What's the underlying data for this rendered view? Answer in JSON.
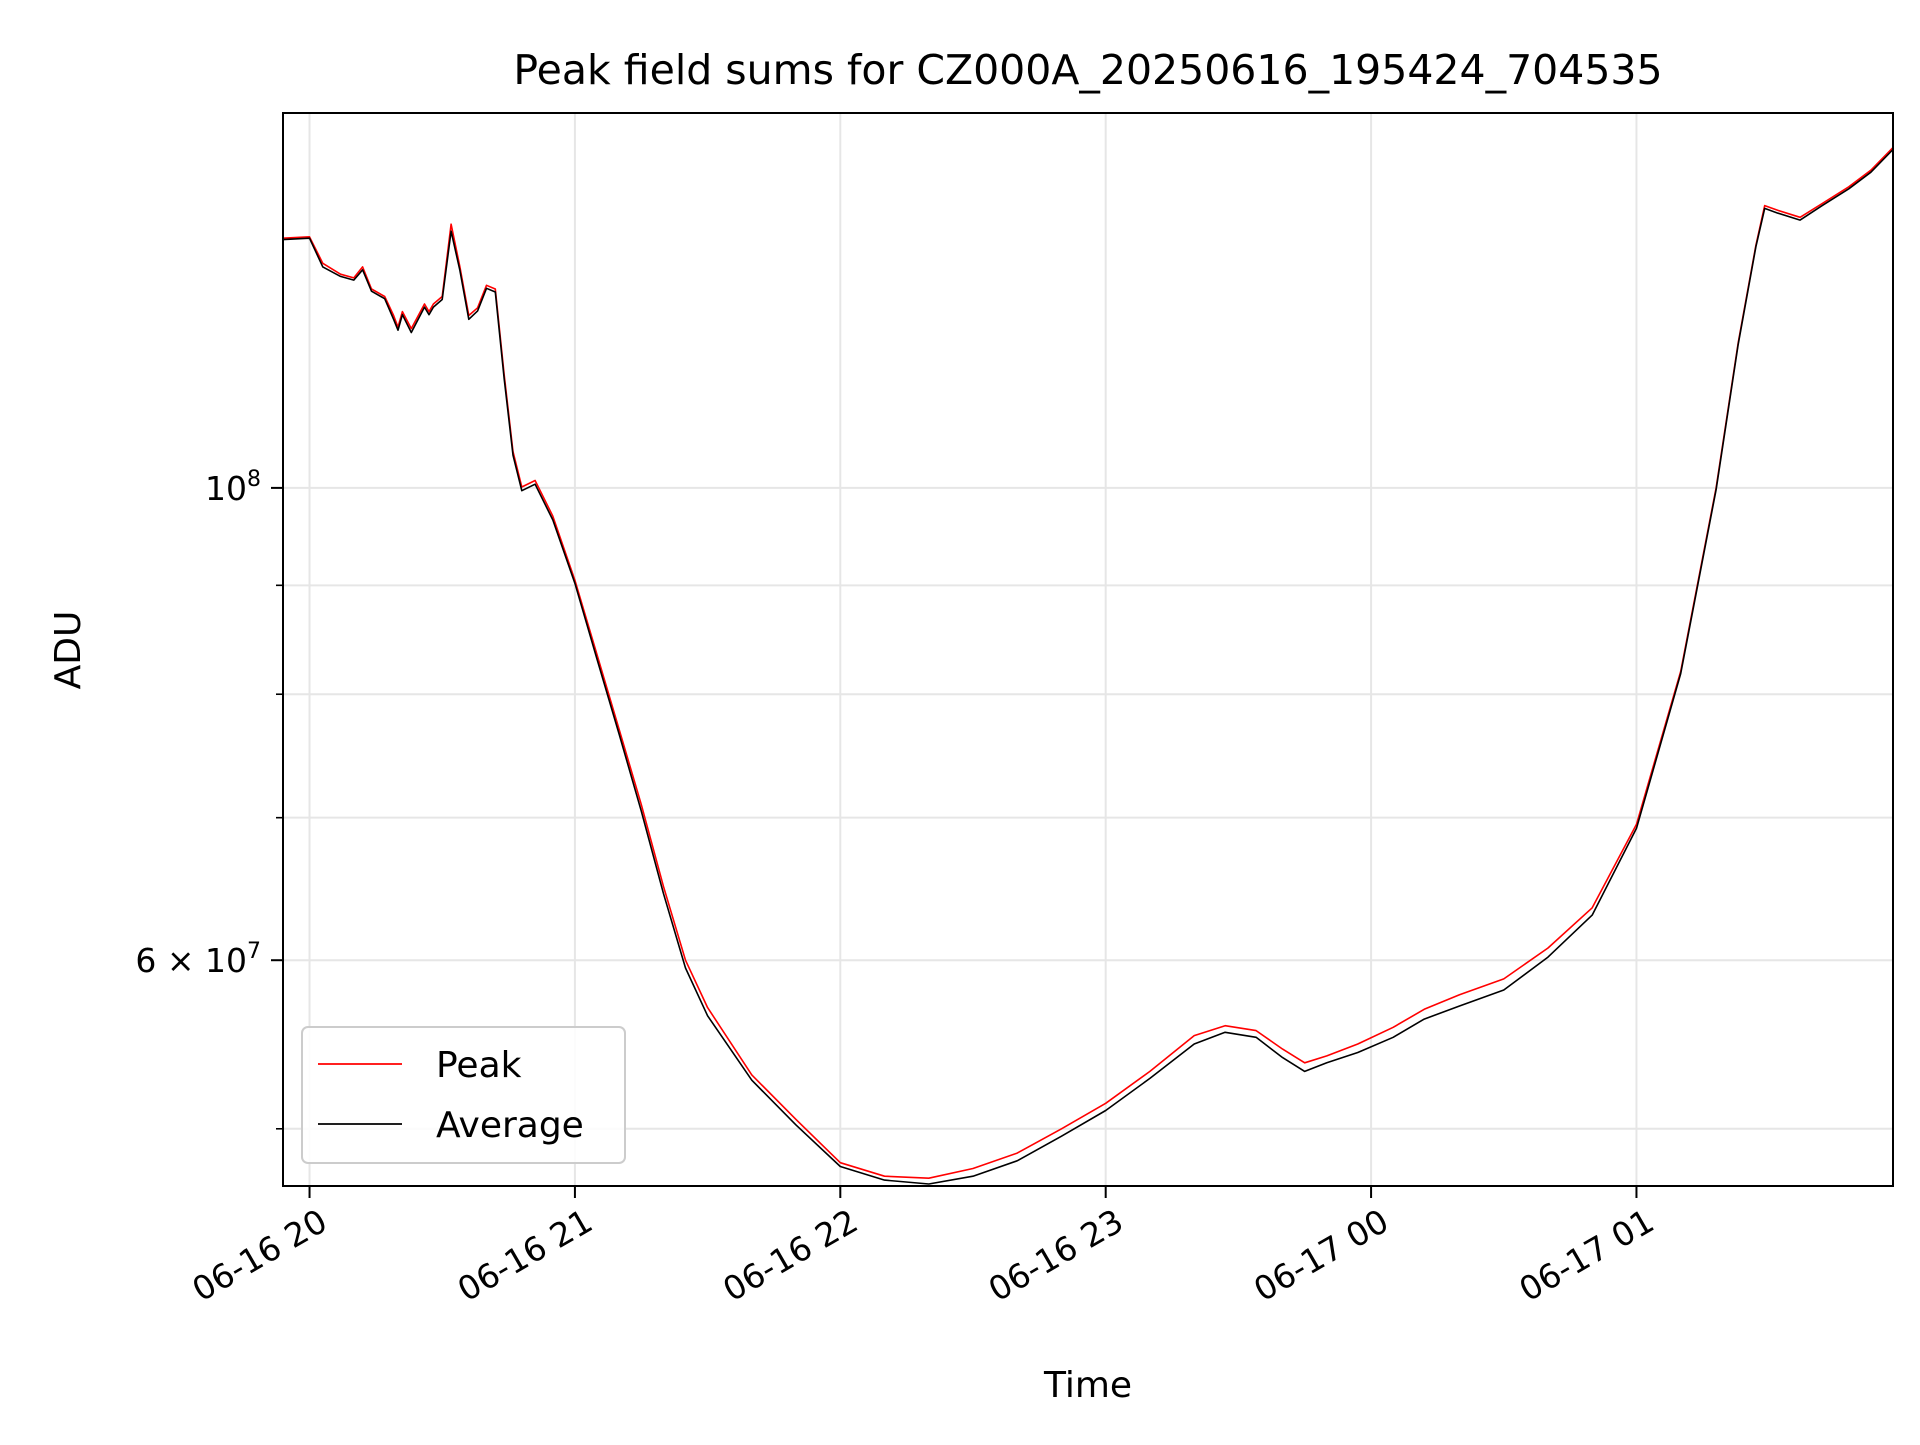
{
  "chart_data": {
    "type": "line",
    "title": "Peak field sums for CZ000A_20250616_195424_704535",
    "xlabel": "Time",
    "ylabel": "ADU",
    "y_scale": "log",
    "grid": true,
    "legend_placement": "lower-left",
    "xlim": [
      "2025-06-16 19:54",
      "2025-06-17 01:58"
    ],
    "ylim": [
      47000000,
      150000000
    ],
    "x_ticks": [
      {
        "t": "2025-06-16 20:00",
        "label": "06-16 20"
      },
      {
        "t": "2025-06-16 21:00",
        "label": "06-16 21"
      },
      {
        "t": "2025-06-16 22:00",
        "label": "06-16 22"
      },
      {
        "t": "2025-06-16 23:00",
        "label": "06-16 23"
      },
      {
        "t": "2025-06-17 00:00",
        "label": "06-17 00"
      },
      {
        "t": "2025-06-17 01:00",
        "label": "06-17 01"
      }
    ],
    "y_major_ticks": [
      {
        "value": 100000000,
        "label_base": "10",
        "label_exp": "8",
        "label_mult": ""
      },
      {
        "value": 60000000,
        "label_base": "10",
        "label_exp": "7",
        "label_mult": "6 × "
      }
    ],
    "y_minor_ticks": [
      50000000,
      70000000,
      80000000,
      90000000
    ],
    "series": [
      {
        "name": "Peak",
        "color": "#ff0000",
        "x": [
          "2025-06-16 19:54",
          "2025-06-16 20:00",
          "2025-06-16 20:03",
          "2025-06-16 20:07",
          "2025-06-16 20:10",
          "2025-06-16 20:12",
          "2025-06-16 20:14",
          "2025-06-16 20:17",
          "2025-06-16 20:19",
          "2025-06-16 20:20",
          "2025-06-16 20:21",
          "2025-06-16 20:23",
          "2025-06-16 20:26",
          "2025-06-16 20:27",
          "2025-06-16 20:28",
          "2025-06-16 20:30",
          "2025-06-16 20:32",
          "2025-06-16 20:34",
          "2025-06-16 20:36",
          "2025-06-16 20:38",
          "2025-06-16 20:40",
          "2025-06-16 20:42",
          "2025-06-16 20:44",
          "2025-06-16 20:46",
          "2025-06-16 20:48",
          "2025-06-16 20:51",
          "2025-06-16 20:55",
          "2025-06-16 21:00",
          "2025-06-16 21:05",
          "2025-06-16 21:10",
          "2025-06-16 21:15",
          "2025-06-16 21:20",
          "2025-06-16 21:25",
          "2025-06-16 21:30",
          "2025-06-16 21:40",
          "2025-06-16 21:50",
          "2025-06-16 22:00",
          "2025-06-16 22:10",
          "2025-06-16 22:20",
          "2025-06-16 22:30",
          "2025-06-16 22:40",
          "2025-06-16 22:50",
          "2025-06-16 23:00",
          "2025-06-16 23:10",
          "2025-06-16 23:20",
          "2025-06-16 23:27",
          "2025-06-16 23:34",
          "2025-06-16 23:40",
          "2025-06-16 23:45",
          "2025-06-16 23:50",
          "2025-06-16 23:57",
          "2025-06-17 00:05",
          "2025-06-17 00:12",
          "2025-06-17 00:20",
          "2025-06-17 00:30",
          "2025-06-17 00:40",
          "2025-06-17 00:50",
          "2025-06-17 01:00",
          "2025-06-17 01:10",
          "2025-06-17 01:18",
          "2025-06-17 01:23",
          "2025-06-17 01:27",
          "2025-06-17 01:29",
          "2025-06-17 01:32",
          "2025-06-17 01:37",
          "2025-06-17 01:42",
          "2025-06-17 01:48",
          "2025-06-17 01:53",
          "2025-06-17 01:58"
        ],
        "y": [
          131000000,
          131200000,
          127500000,
          126000000,
          125500000,
          127000000,
          124000000,
          123000000,
          120500000,
          119000000,
          121000000,
          118800000,
          122000000,
          121000000,
          122000000,
          123000000,
          133000000,
          127000000,
          120500000,
          121500000,
          124500000,
          124000000,
          113000000,
          104000000,
          100100000,
          100800000,
          97000000,
          90500000,
          83500000,
          77000000,
          71000000,
          65000000,
          60000000,
          57000000,
          53000000,
          50500000,
          48200000,
          47500000,
          47400000,
          47900000,
          48700000,
          50000000,
          51400000,
          53200000,
          55300000,
          55900000,
          55600000,
          54500000,
          53700000,
          54100000,
          54800000,
          55800000,
          56900000,
          57800000,
          58800000,
          60800000,
          63500000,
          69500000,
          82000000,
          100000000,
          117000000,
          130000000,
          135700000,
          135000000,
          134000000,
          136000000,
          138500000,
          141000000,
          144500000
        ]
      },
      {
        "name": "Average",
        "color": "#000000",
        "x": [
          "2025-06-16 19:54",
          "2025-06-16 20:00",
          "2025-06-16 20:03",
          "2025-06-16 20:07",
          "2025-06-16 20:10",
          "2025-06-16 20:12",
          "2025-06-16 20:14",
          "2025-06-16 20:17",
          "2025-06-16 20:19",
          "2025-06-16 20:20",
          "2025-06-16 20:21",
          "2025-06-16 20:23",
          "2025-06-16 20:26",
          "2025-06-16 20:27",
          "2025-06-16 20:28",
          "2025-06-16 20:30",
          "2025-06-16 20:32",
          "2025-06-16 20:34",
          "2025-06-16 20:36",
          "2025-06-16 20:38",
          "2025-06-16 20:40",
          "2025-06-16 20:42",
          "2025-06-16 20:44",
          "2025-06-16 20:46",
          "2025-06-16 20:48",
          "2025-06-16 20:51",
          "2025-06-16 20:55",
          "2025-06-16 21:00",
          "2025-06-16 21:05",
          "2025-06-16 21:10",
          "2025-06-16 21:15",
          "2025-06-16 21:20",
          "2025-06-16 21:25",
          "2025-06-16 21:30",
          "2025-06-16 21:40",
          "2025-06-16 21:50",
          "2025-06-16 22:00",
          "2025-06-16 22:10",
          "2025-06-16 22:20",
          "2025-06-16 22:30",
          "2025-06-16 22:40",
          "2025-06-16 22:50",
          "2025-06-16 23:00",
          "2025-06-16 23:10",
          "2025-06-16 23:20",
          "2025-06-16 23:27",
          "2025-06-16 23:34",
          "2025-06-16 23:40",
          "2025-06-16 23:45",
          "2025-06-16 23:50",
          "2025-06-16 23:57",
          "2025-06-17 00:05",
          "2025-06-17 00:12",
          "2025-06-17 00:20",
          "2025-06-17 00:30",
          "2025-06-17 00:40",
          "2025-06-17 00:50",
          "2025-06-17 01:00",
          "2025-06-17 01:10",
          "2025-06-17 01:18",
          "2025-06-17 01:23",
          "2025-06-17 01:27",
          "2025-06-17 01:29",
          "2025-06-17 01:32",
          "2025-06-17 01:37",
          "2025-06-17 01:42",
          "2025-06-17 01:48",
          "2025-06-17 01:53",
          "2025-06-17 01:58"
        ],
        "y": [
          130800000,
          131000000,
          127000000,
          125700000,
          125200000,
          126600000,
          123700000,
          122700000,
          120000000,
          118600000,
          120600000,
          118300000,
          121600000,
          120600000,
          121600000,
          122600000,
          132000000,
          126500000,
          120000000,
          121100000,
          124100000,
          123600000,
          112500000,
          103600000,
          99700000,
          100400000,
          96600000,
          90200000,
          83100000,
          76600000,
          70500000,
          64500000,
          59500000,
          56500000,
          52700000,
          50200000,
          48000000,
          47300000,
          47100000,
          47500000,
          48300000,
          49600000,
          51000000,
          52800000,
          54800000,
          55500000,
          55200000,
          54000000,
          53200000,
          53700000,
          54300000,
          55200000,
          56300000,
          57100000,
          58100000,
          60200000,
          63000000,
          69200000,
          81800000,
          99800000,
          116800000,
          129800000,
          135300000,
          134600000,
          133600000,
          135700000,
          138200000,
          140700000,
          144200000
        ]
      }
    ]
  }
}
